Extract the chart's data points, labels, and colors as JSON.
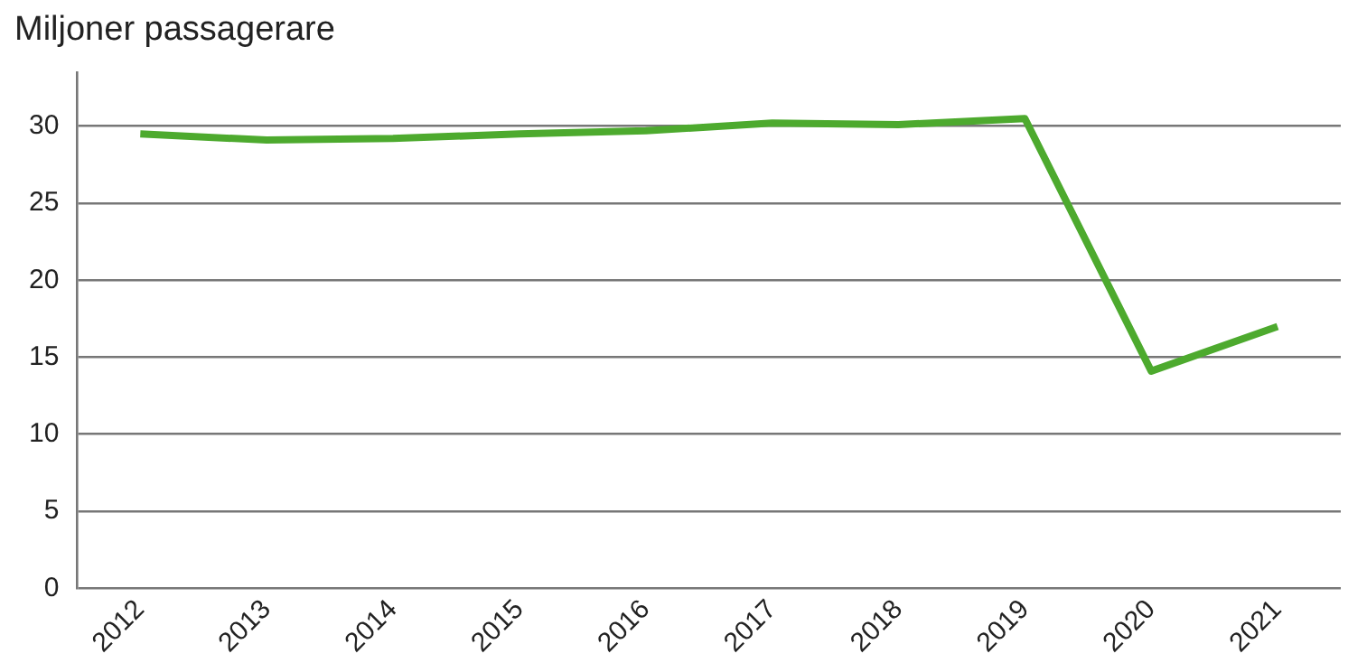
{
  "chart_data": {
    "type": "line",
    "title": "Miljoner passagerare",
    "categories": [
      "2012",
      "2013",
      "2014",
      "2015",
      "2016",
      "2017",
      "2018",
      "2019",
      "2020",
      "2021"
    ],
    "series": [
      {
        "color": "#4daa2e",
        "values": [
          29.5,
          29.1,
          29.2,
          29.5,
          29.7,
          30.2,
          30.1,
          30.5,
          14.1,
          17.0
        ]
      }
    ],
    "ylim": [
      0,
      33.5
    ],
    "yticks": [
      0,
      5,
      10,
      15,
      20,
      25,
      30
    ],
    "grid": "y",
    "legend": false,
    "marker": "none",
    "line_style": "solid"
  }
}
